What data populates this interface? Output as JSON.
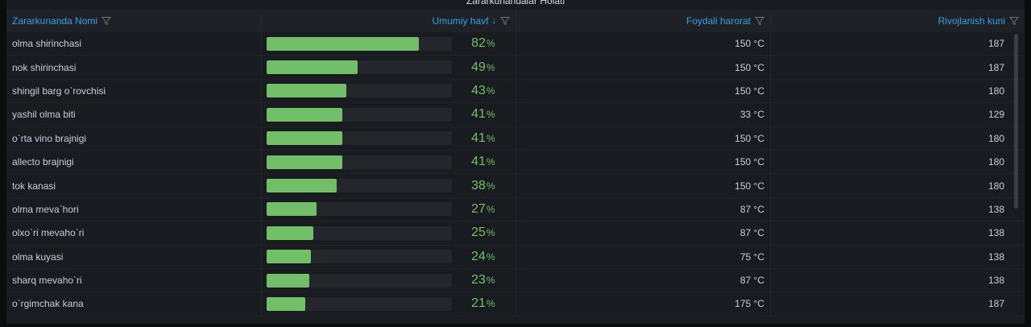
{
  "panel": {
    "title": "Zararkunandalar Holati"
  },
  "table": {
    "columns": [
      {
        "label": "Zararkunanda Nomi",
        "align": "left",
        "sort": "",
        "filter_icon": "filter-icon"
      },
      {
        "label": "Umumiy havf",
        "align": "right",
        "sort": "↓",
        "filter_icon": "filter-icon"
      },
      {
        "label": "Foydali harorat",
        "align": "right",
        "sort": "",
        "filter_icon": "filter-icon"
      },
      {
        "label": "Rivojlanish kuni",
        "align": "right",
        "sort": "",
        "filter_icon": "filter-icon"
      }
    ],
    "rows": [
      {
        "name": "olma shirinchasi",
        "risk": 82,
        "risk_unit": "%",
        "temp": "150 °C",
        "days": "187"
      },
      {
        "name": "nok shirinchasi",
        "risk": 49,
        "risk_unit": "%",
        "temp": "150 °C",
        "days": "187"
      },
      {
        "name": "shingil barg o`rovchisi",
        "risk": 43,
        "risk_unit": "%",
        "temp": "150 °C",
        "days": "180"
      },
      {
        "name": "yashil olma biti",
        "risk": 41,
        "risk_unit": "%",
        "temp": "33 °C",
        "days": "129"
      },
      {
        "name": "o`rta vino brajnigi",
        "risk": 41,
        "risk_unit": "%",
        "temp": "150 °C",
        "days": "180"
      },
      {
        "name": "allecto brajnigi",
        "risk": 41,
        "risk_unit": "%",
        "temp": "150 °C",
        "days": "180"
      },
      {
        "name": "tok kanasi",
        "risk": 38,
        "risk_unit": "%",
        "temp": "150 °C",
        "days": "180"
      },
      {
        "name": "olma meva`hori",
        "risk": 27,
        "risk_unit": "%",
        "temp": "87 °C",
        "days": "138"
      },
      {
        "name": "olxo`ri mevaho`ri",
        "risk": 25,
        "risk_unit": "%",
        "temp": "87 °C",
        "days": "138"
      },
      {
        "name": "olma kuyasi",
        "risk": 24,
        "risk_unit": "%",
        "temp": "75 °C",
        "days": "138"
      },
      {
        "name": "sharq mevaho`ri",
        "risk": 23,
        "risk_unit": "%",
        "temp": "87 °C",
        "days": "138"
      },
      {
        "name": "o`rgimchak kana",
        "risk": 21,
        "risk_unit": "%",
        "temp": "175 °C",
        "days": "187"
      }
    ]
  },
  "colors": {
    "header_text": "#33a2e5",
    "gauge_fill": "#73bf69",
    "gauge_track": "#24262c",
    "panel_bg": "#181b1f"
  }
}
